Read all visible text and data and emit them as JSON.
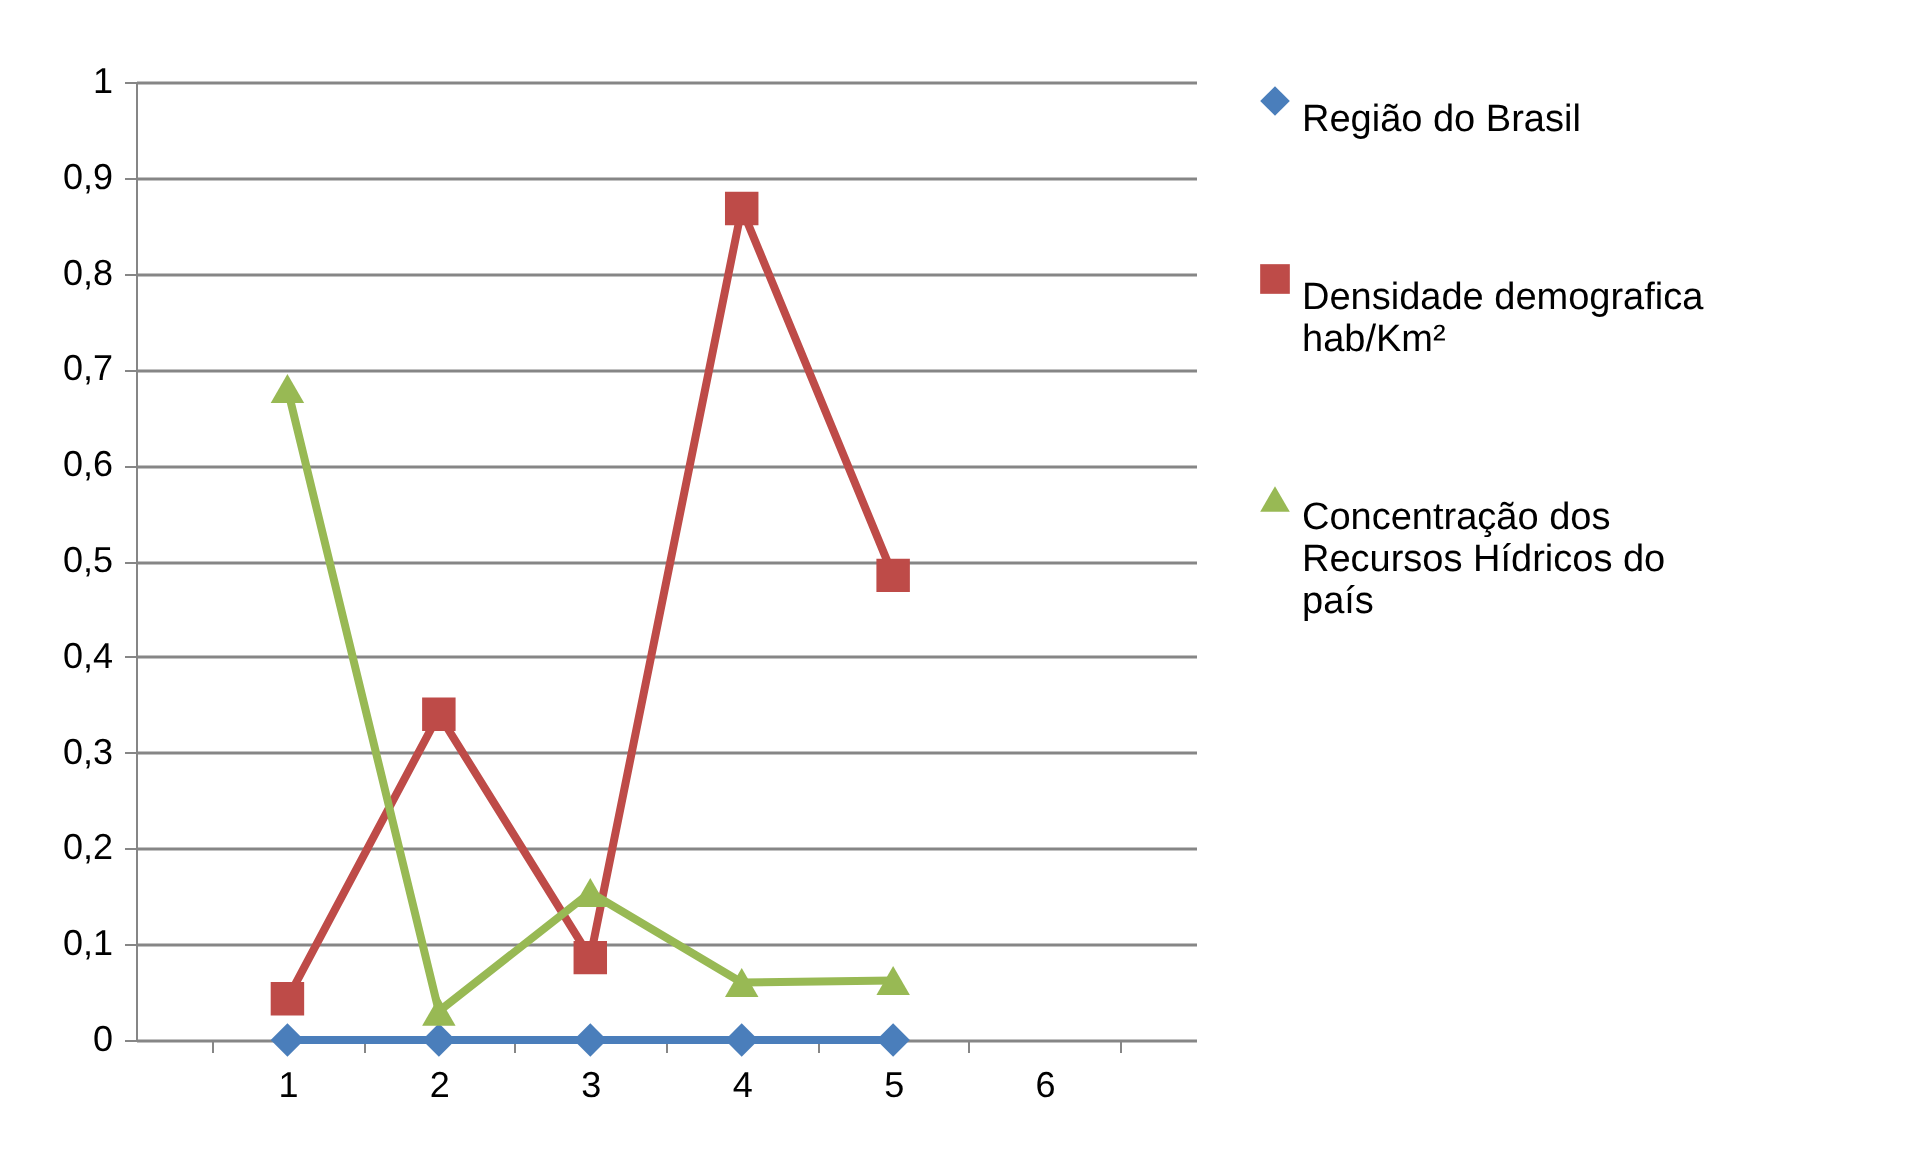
{
  "chart_data": {
    "type": "line",
    "categories": [
      "1",
      "2",
      "3",
      "4",
      "5",
      "6"
    ],
    "series": [
      {
        "name": "Região do Brasil",
        "color": "#4a7ebb",
        "marker": "diamond",
        "values": [
          0,
          0,
          0,
          0,
          0,
          null
        ]
      },
      {
        "name": "Densidade demografica hab/Km²",
        "color": "#be4b48",
        "marker": "square",
        "values": [
          0.043,
          0.34,
          0.086,
          0.868,
          0.485,
          null
        ]
      },
      {
        "name": "Concentração dos Recursos Hídricos do país",
        "color": "#98b954",
        "marker": "triangle",
        "values": [
          0.68,
          0.03,
          0.154,
          0.06,
          0.062,
          null
        ]
      }
    ],
    "ylim": [
      0,
      1
    ],
    "yticks": [
      0,
      {
        "value": 0.1,
        "label": "0,1"
      },
      {
        "value": 0.2,
        "label": "0,2"
      },
      {
        "value": 0.3,
        "label": "0,3"
      },
      {
        "value": 0.4,
        "label": "0,4"
      },
      {
        "value": 0.5,
        "label": "0,5"
      },
      {
        "value": 0.6,
        "label": "0,6"
      },
      {
        "value": 0.7,
        "label": "0,7"
      },
      {
        "value": 0.8,
        "label": "0,8"
      },
      {
        "value": 0.9,
        "label": "0,9"
      },
      1
    ],
    "grid": "y",
    "legend": "right"
  }
}
